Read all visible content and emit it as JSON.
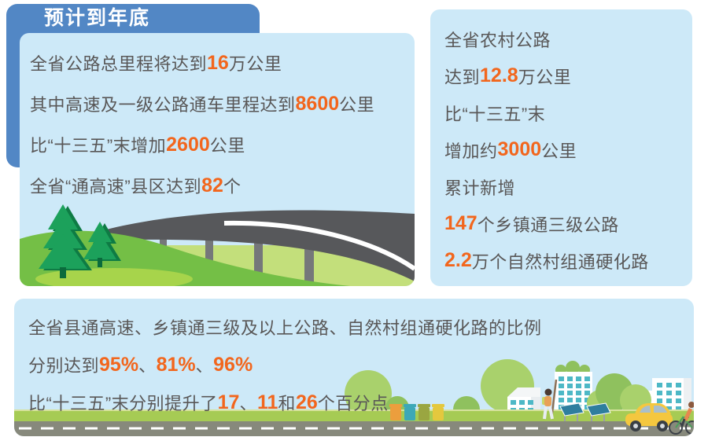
{
  "colors": {
    "ribbon_blue": "#5287C5",
    "panel_blue": "#CDE9F8",
    "text_gray": "#595757",
    "accent_orange": "#F2661D",
    "grass_green": "#74BF46",
    "road_gray": "#57585B",
    "window_teal": "#4DB8C6",
    "car_yellow": "#F4C73F"
  },
  "header": {
    "badge": "预计到年底"
  },
  "left_panel": {
    "lines": [
      [
        "全省公路总里程将达到",
        "16",
        "万公里"
      ],
      [
        "其中高速及一级公路通车里程达到",
        "8600",
        "公里"
      ],
      [
        "比“十三五”末增加",
        "2600",
        "公里"
      ],
      [
        "全省“通高速”县区达到",
        "82",
        "个"
      ]
    ]
  },
  "right_panel": {
    "lines": [
      [
        "全省农村公路"
      ],
      [
        "达到",
        "12.8",
        "万公里"
      ],
      [
        "比“十三五”末"
      ],
      [
        "增加约",
        "3000",
        "公里"
      ],
      [
        "累计新增"
      ],
      [
        "",
        "147",
        "个乡镇通三级公路"
      ],
      [
        "",
        "2.2",
        "万个自然村组通硬化路"
      ]
    ]
  },
  "bottom_panel": {
    "lines": [
      [
        "全省县通高速、乡镇通三级及以上公路、自然村组通硬化路的比例"
      ],
      [
        "分别达到",
        "95%",
        "、",
        "81%",
        "、",
        "96%"
      ],
      [
        "比“十三五”末分别提升了",
        "17",
        "、",
        "11",
        "和",
        "26",
        "个百分点"
      ]
    ]
  },
  "illustrations": {
    "left": [
      "pine-trees",
      "highway-bridge",
      "grass-hills"
    ],
    "bottom": [
      "trees",
      "buildings",
      "solar-panels",
      "recycling-bins",
      "pedestrian",
      "car",
      "cyclist",
      "road"
    ]
  }
}
